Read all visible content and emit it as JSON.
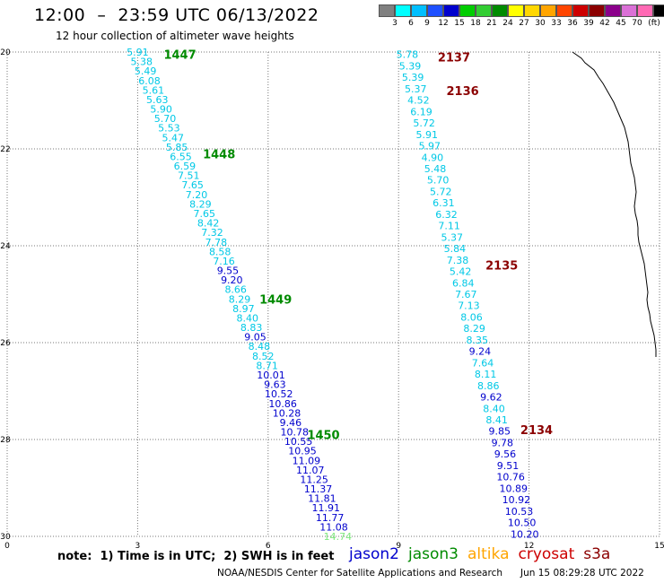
{
  "header": {
    "title": "12:00  –  23:59 UTC 06/13/2022",
    "subtitle": "12 hour collection of altimeter wave heights"
  },
  "colorbar": {
    "unit": "(ft)",
    "colors": [
      "#808080",
      "#00ffff",
      "#00bfff",
      "#1e50ff",
      "#0000cd",
      "#00cd00",
      "#32cd32",
      "#008b00",
      "#ffff00",
      "#ffd700",
      "#ffa500",
      "#ff4500",
      "#cd0000",
      "#8b0000",
      "#8b008b",
      "#da70d6",
      "#ff69b4",
      "#000000"
    ],
    "labels": [
      "3",
      "6",
      "9",
      "12",
      "15",
      "18",
      "21",
      "24",
      "27",
      "30",
      "33",
      "36",
      "39",
      "42",
      "45",
      "70"
    ]
  },
  "footer": {
    "note": "note:  1) Time is in UTC;  2) SWH is in feet",
    "missions": [
      {
        "name": "jason2",
        "color": "#0000cd"
      },
      {
        "name": "jason3",
        "color": "#008b00"
      },
      {
        "name": "altika",
        "color": "#ffa500"
      },
      {
        "name": "cryosat",
        "color": "#cd0000"
      },
      {
        "name": "s3a",
        "color": "#8b0000"
      }
    ],
    "credit": "NOAA/NESDIS Center for Satellite Applications and Research",
    "timestamp": "Jun 15 08:29:28 UTC 2022"
  },
  "chart_data": {
    "type": "scatter",
    "x_ticks": [
      "0",
      "3",
      "6",
      "9",
      "12",
      "15"
    ],
    "y_ticks": [
      "20",
      "22",
      "24",
      "26",
      "28",
      "30"
    ],
    "xlim": [
      0,
      15
    ],
    "ylim": [
      20,
      30
    ],
    "grid": true,
    "value_colors": {
      "cyan": "#00c8e6",
      "blue": "#0000cd",
      "green": "#7ee87e"
    },
    "tracks": [
      {
        "satellite": "jason3",
        "start": [
          3.0,
          20.0
        ],
        "end": [
          7.6,
          30.0
        ],
        "values": [
          "5.91",
          "5.38",
          "5.49",
          "6.08",
          "5.61",
          "5.63",
          "5.90",
          "5.70",
          "5.53",
          "5.47",
          "5.85",
          "6.55",
          "6.59",
          "7.51",
          "7.65",
          "7.20",
          "8.29",
          "7.65",
          "8.42",
          "7.32",
          "7.78",
          "8.58",
          "7.16",
          "9.55",
          "9.20",
          "8.66",
          "8.29",
          "8.97",
          "8.40",
          "8.83",
          "9.05",
          "8.48",
          "8.52",
          "8.71",
          "10.01",
          "9.63",
          "10.52",
          "10.86",
          "10.28",
          "9.46",
          "10.78",
          "10.55",
          "10.95",
          "11.09",
          "11.07",
          "11.25",
          "11.37",
          "11.81",
          "11.91",
          "11.77",
          "11.08",
          "14.74"
        ],
        "value_colors": [
          "cyan",
          "cyan",
          "cyan",
          "cyan",
          "cyan",
          "cyan",
          "cyan",
          "cyan",
          "cyan",
          "cyan",
          "cyan",
          "cyan",
          "cyan",
          "cyan",
          "cyan",
          "cyan",
          "cyan",
          "cyan",
          "cyan",
          "cyan",
          "cyan",
          "cyan",
          "cyan",
          "blue",
          "blue",
          "cyan",
          "cyan",
          "cyan",
          "cyan",
          "cyan",
          "blue",
          "cyan",
          "cyan",
          "cyan",
          "blue",
          "blue",
          "blue",
          "blue",
          "blue",
          "blue",
          "blue",
          "blue",
          "blue",
          "blue",
          "blue",
          "blue",
          "blue",
          "blue",
          "blue",
          "blue",
          "blue",
          "green"
        ],
        "labels": [
          {
            "text": "1447",
            "x": 3.6,
            "y": 20.05,
            "color": "#008b00"
          },
          {
            "text": "1448",
            "x": 4.5,
            "y": 22.1,
            "color": "#008b00"
          },
          {
            "text": "1449",
            "x": 5.8,
            "y": 25.1,
            "color": "#008b00"
          },
          {
            "text": "1450",
            "x": 6.9,
            "y": 27.9,
            "color": "#008b00"
          }
        ]
      },
      {
        "satellite": "cryosat",
        "start": [
          9.2,
          20.05
        ],
        "end": [
          11.9,
          29.95
        ],
        "values": [
          "5.78",
          "5.39",
          "5.39",
          "5.37",
          "4.52",
          "6.19",
          "5.72",
          "5.91",
          "5.97",
          "4.90",
          "5.48",
          "5.70",
          "5.72",
          "6.31",
          "6.32",
          "7.11",
          "5.37",
          "5.84",
          "7.38",
          "5.42",
          "6.84",
          "7.67",
          "7.13",
          "8.06",
          "8.29",
          "8.35",
          "9.24",
          "7.64",
          "8.11",
          "8.86",
          "9.62",
          "8.40",
          "8.41",
          "9.85",
          "9.78",
          "9.56",
          "9.51",
          "10.76",
          "10.89",
          "10.92",
          "10.53",
          "10.50",
          "10.20"
        ],
        "value_colors": [
          "cyan",
          "cyan",
          "cyan",
          "cyan",
          "cyan",
          "cyan",
          "cyan",
          "cyan",
          "cyan",
          "cyan",
          "cyan",
          "cyan",
          "cyan",
          "cyan",
          "cyan",
          "cyan",
          "cyan",
          "cyan",
          "cyan",
          "cyan",
          "cyan",
          "cyan",
          "cyan",
          "cyan",
          "cyan",
          "cyan",
          "blue",
          "cyan",
          "cyan",
          "cyan",
          "blue",
          "cyan",
          "cyan",
          "blue",
          "blue",
          "blue",
          "blue",
          "blue",
          "blue",
          "blue",
          "blue",
          "blue",
          "blue"
        ],
        "labels": [
          {
            "text": "2137",
            "x": 9.9,
            "y": 20.1,
            "color": "#8b0000"
          },
          {
            "text": "2136",
            "x": 10.1,
            "y": 20.8,
            "color": "#8b0000"
          },
          {
            "text": "2135",
            "x": 11.0,
            "y": 24.4,
            "color": "#8b0000"
          },
          {
            "text": "2134",
            "x": 11.8,
            "y": 27.8,
            "color": "#8b0000"
          }
        ]
      }
    ]
  }
}
